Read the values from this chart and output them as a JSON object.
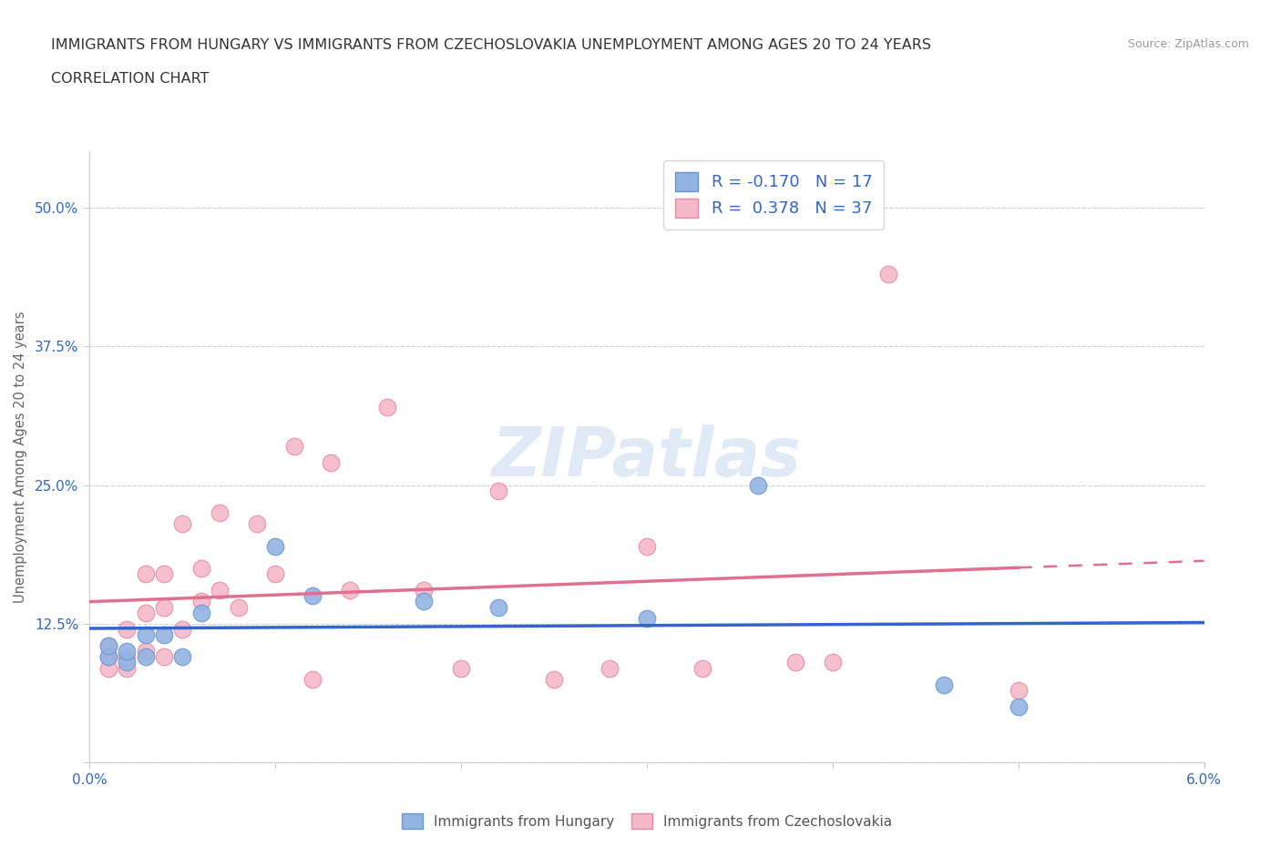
{
  "title_line1": "IMMIGRANTS FROM HUNGARY VS IMMIGRANTS FROM CZECHOSLOVAKIA UNEMPLOYMENT AMONG AGES 20 TO 24 YEARS",
  "title_line2": "CORRELATION CHART",
  "source_text": "Source: ZipAtlas.com",
  "ylabel": "Unemployment Among Ages 20 to 24 years",
  "xlim": [
    0.0,
    0.06
  ],
  "ylim": [
    0.0,
    0.55
  ],
  "yticks": [
    0.0,
    0.125,
    0.25,
    0.375,
    0.5
  ],
  "ytick_labels": [
    "",
    "12.5%",
    "25.0%",
    "37.5%",
    "50.0%"
  ],
  "xtick_positions": [
    0.0,
    0.01,
    0.02,
    0.03,
    0.04,
    0.05,
    0.06
  ],
  "xtick_labels": [
    "0.0%",
    "",
    "",
    "",
    "",
    "",
    "6.0%"
  ],
  "background_color": "#ffffff",
  "watermark": "ZIPatlas",
  "hungary_color": "#92b4e3",
  "hungary_edge": "#6a96d4",
  "czech_color": "#f4b8c8",
  "czech_edge": "#e88aa4",
  "line_hungary_color": "#3366cc",
  "line_czech_color": "#e07090",
  "legend_R_hungary": "-0.170",
  "legend_N_hungary": "17",
  "legend_R_czech": "0.378",
  "legend_N_czech": "37",
  "hungary_x": [
    0.001,
    0.001,
    0.002,
    0.002,
    0.003,
    0.003,
    0.004,
    0.005,
    0.006,
    0.01,
    0.012,
    0.018,
    0.022,
    0.03,
    0.036,
    0.046,
    0.05
  ],
  "hungary_y": [
    0.095,
    0.105,
    0.09,
    0.1,
    0.095,
    0.115,
    0.115,
    0.095,
    0.135,
    0.195,
    0.15,
    0.145,
    0.14,
    0.13,
    0.25,
    0.07,
    0.05
  ],
  "czech_x": [
    0.001,
    0.001,
    0.001,
    0.002,
    0.002,
    0.002,
    0.003,
    0.003,
    0.003,
    0.004,
    0.004,
    0.004,
    0.005,
    0.005,
    0.006,
    0.006,
    0.007,
    0.007,
    0.008,
    0.009,
    0.01,
    0.011,
    0.012,
    0.013,
    0.014,
    0.016,
    0.018,
    0.02,
    0.022,
    0.025,
    0.028,
    0.03,
    0.033,
    0.038,
    0.04,
    0.043,
    0.05
  ],
  "czech_y": [
    0.085,
    0.095,
    0.105,
    0.085,
    0.095,
    0.12,
    0.1,
    0.135,
    0.17,
    0.095,
    0.14,
    0.17,
    0.12,
    0.215,
    0.145,
    0.175,
    0.155,
    0.225,
    0.14,
    0.215,
    0.17,
    0.285,
    0.075,
    0.27,
    0.155,
    0.32,
    0.155,
    0.085,
    0.245,
    0.075,
    0.085,
    0.195,
    0.085,
    0.09,
    0.09,
    0.44,
    0.065
  ]
}
